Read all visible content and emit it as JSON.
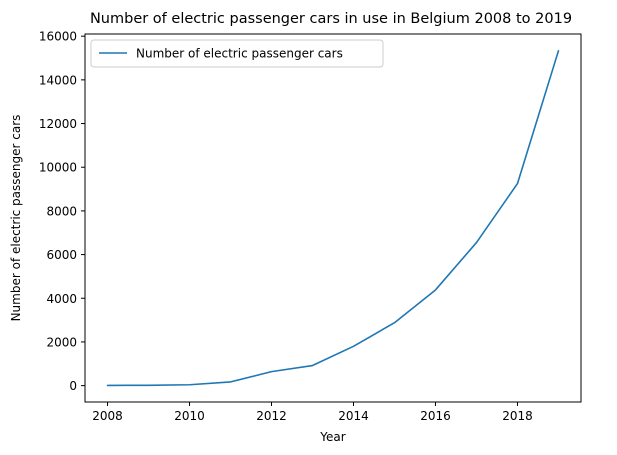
{
  "chart_data": {
    "type": "line",
    "title": "Number of electric passenger cars in use in Belgium 2008 to 2019",
    "xlabel": "Year",
    "ylabel": "Number of electric passenger cars",
    "xlim": [
      2007.45,
      2019.55
    ],
    "ylim": [
      -750,
      16100
    ],
    "xticks": [
      2008,
      2010,
      2012,
      2014,
      2016,
      2018
    ],
    "yticks": [
      0,
      2000,
      4000,
      6000,
      8000,
      10000,
      12000,
      14000,
      16000
    ],
    "grid": false,
    "legend_position": "upper-left",
    "series": [
      {
        "name": "Number of electric passenger cars",
        "color": "#1f77b4",
        "x": [
          2008,
          2009,
          2010,
          2011,
          2012,
          2013,
          2014,
          2015,
          2016,
          2017,
          2018,
          2019
        ],
        "y": [
          10,
          15,
          40,
          170,
          640,
          920,
          1800,
          2880,
          4380,
          6550,
          9250,
          15330
        ]
      }
    ]
  }
}
